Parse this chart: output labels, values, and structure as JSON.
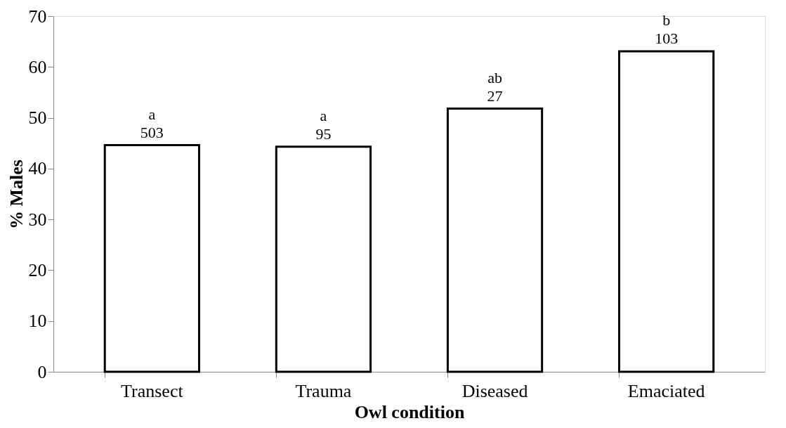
{
  "chart_data": {
    "type": "bar",
    "xlabel": "Owl condition",
    "ylabel": "% Males",
    "categories": [
      "Transect",
      "Trauma",
      "Diseased",
      "Emaciated"
    ],
    "values": [
      44.6,
      44.3,
      51.8,
      63.1
    ],
    "color": "#ffffff",
    "ylim": [
      0,
      70
    ],
    "yticks": [
      0,
      10,
      20,
      30,
      40,
      50,
      60,
      70
    ],
    "grid": false,
    "annotations": [
      {
        "text": "a\n503",
        "x": "Transect",
        "y": 44.6
      },
      {
        "text": "a\n95",
        "x": "Trauma",
        "y": 44.3
      },
      {
        "text": "ab\n27",
        "x": "Diseased",
        "y": 51.8
      },
      {
        "text": "b\n103",
        "x": "Emaciated",
        "y": 63.1
      }
    ]
  }
}
